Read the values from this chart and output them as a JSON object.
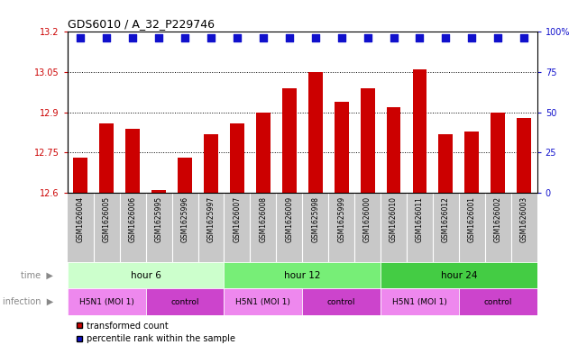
{
  "title": "GDS6010 / A_32_P229746",
  "samples": [
    "GSM1626004",
    "GSM1626005",
    "GSM1626006",
    "GSM1625995",
    "GSM1625996",
    "GSM1625997",
    "GSM1626007",
    "GSM1626008",
    "GSM1626009",
    "GSM1625998",
    "GSM1625999",
    "GSM1626000",
    "GSM1626010",
    "GSM1626011",
    "GSM1626012",
    "GSM1626001",
    "GSM1626002",
    "GSM1626003"
  ],
  "bar_values": [
    12.73,
    12.86,
    12.84,
    12.61,
    12.73,
    12.82,
    12.86,
    12.9,
    12.99,
    13.05,
    12.94,
    12.99,
    12.92,
    13.06,
    12.82,
    12.83,
    12.9,
    12.88
  ],
  "bar_color": "#cc0000",
  "dot_color": "#1010cc",
  "ylim_left": [
    12.6,
    13.2
  ],
  "ylim_right": [
    0,
    100
  ],
  "yticks_left": [
    12.6,
    12.75,
    12.9,
    13.05,
    13.2
  ],
  "yticks_right": [
    0,
    25,
    50,
    75,
    100
  ],
  "ytick_labels_left": [
    "12.6",
    "12.75",
    "12.9",
    "13.05",
    "13.2"
  ],
  "ytick_labels_right": [
    "0",
    "25",
    "50",
    "75",
    "100%"
  ],
  "grid_values": [
    12.75,
    12.9,
    13.05
  ],
  "time_groups": [
    {
      "label": "hour 6",
      "start": 0,
      "end": 6,
      "color": "#ccffcc"
    },
    {
      "label": "hour 12",
      "start": 6,
      "end": 12,
      "color": "#77ee77"
    },
    {
      "label": "hour 24",
      "start": 12,
      "end": 18,
      "color": "#44cc44"
    }
  ],
  "infection_groups": [
    {
      "label": "H5N1 (MOI 1)",
      "start": 0,
      "end": 3,
      "color": "#ee88ee"
    },
    {
      "label": "control",
      "start": 3,
      "end": 6,
      "color": "#cc44cc"
    },
    {
      "label": "H5N1 (MOI 1)",
      "start": 6,
      "end": 9,
      "color": "#ee88ee"
    },
    {
      "label": "control",
      "start": 9,
      "end": 12,
      "color": "#cc44cc"
    },
    {
      "label": "H5N1 (MOI 1)",
      "start": 12,
      "end": 15,
      "color": "#ee88ee"
    },
    {
      "label": "control",
      "start": 15,
      "end": 18,
      "color": "#cc44cc"
    }
  ],
  "legend_items": [
    {
      "label": "transformed count",
      "color": "#cc0000",
      "marker": "s"
    },
    {
      "label": "percentile rank within the sample",
      "color": "#1010cc",
      "marker": "s"
    }
  ],
  "bar_width": 0.55,
  "dot_size": 28,
  "tick_color_left": "#cc0000",
  "tick_color_right": "#1010cc",
  "bg_color": "#ffffff",
  "label_row_bg": "#c8c8c8",
  "time_label": "time",
  "infection_label": "infection"
}
